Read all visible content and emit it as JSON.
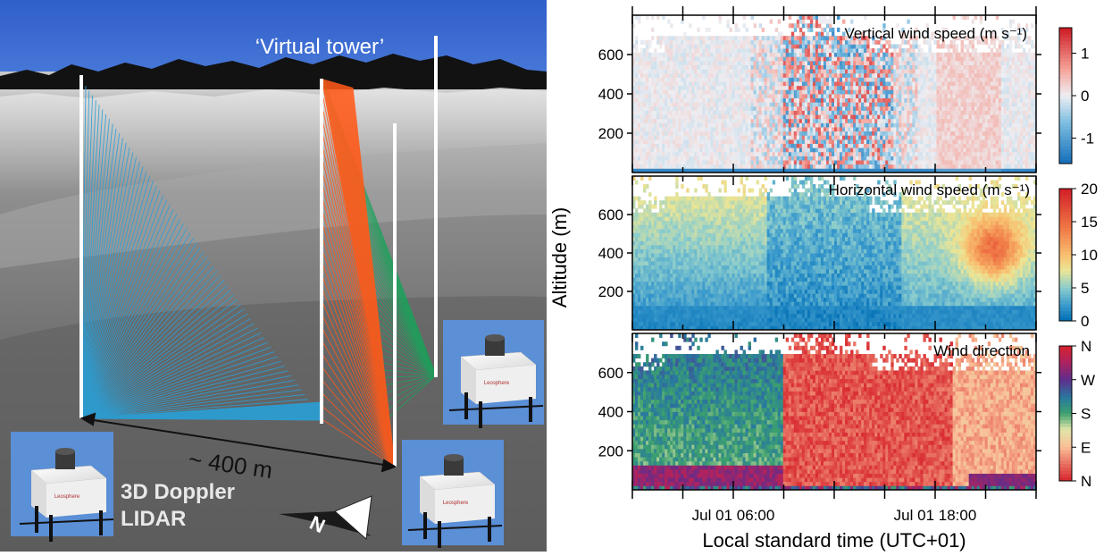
{
  "scene": {
    "tower_label": "‘Virtual tower’",
    "distance_label": "~ 400 m",
    "instrument_label_line1": "3D Doppler",
    "instrument_label_line2": "LIDAR",
    "compass_label": "N",
    "lidar_logo_text": "Leosphere"
  },
  "chart_data": [
    {
      "type": "heatmap",
      "title": "Vertical wind speed (m s⁻¹)",
      "ylabel": "Altitude (m)",
      "yticks": [
        200,
        400,
        600
      ],
      "ylim": [
        0,
        800
      ],
      "colorbar": {
        "ticks": [
          "1",
          "0",
          "-1"
        ],
        "values": [
          1,
          0,
          -1
        ],
        "range": [
          -1.6,
          1.6
        ],
        "colormap": "diverging-blue-red"
      }
    },
    {
      "type": "heatmap",
      "title": "Horizontal wind speed (m s⁻¹)",
      "ylabel": "Altitude (m)",
      "yticks": [
        200,
        400,
        600
      ],
      "ylim": [
        0,
        800
      ],
      "colorbar": {
        "ticks": [
          "20",
          "15",
          "10",
          "5",
          "0"
        ],
        "values": [
          20,
          15,
          10,
          5,
          0
        ],
        "range": [
          0,
          20
        ],
        "colormap": "spectral"
      }
    },
    {
      "type": "heatmap",
      "title": "Wind direction",
      "ylabel": "Altitude (m)",
      "yticks": [
        200,
        400,
        600
      ],
      "ylim": [
        0,
        800
      ],
      "colorbar": {
        "ticks": [
          "N",
          "W",
          "S",
          "E",
          "N"
        ],
        "values": [
          360,
          270,
          180,
          90,
          0
        ],
        "range": [
          0,
          360
        ],
        "colormap": "cyclic"
      }
    }
  ],
  "axes": {
    "shared_ylabel": "Altitude (m)",
    "xlabel": "Local standard time (UTC+01)",
    "xticks": [
      "Jul 01 06:00",
      "Jul 01 18:00"
    ],
    "x_range_hours": [
      0,
      24
    ]
  }
}
